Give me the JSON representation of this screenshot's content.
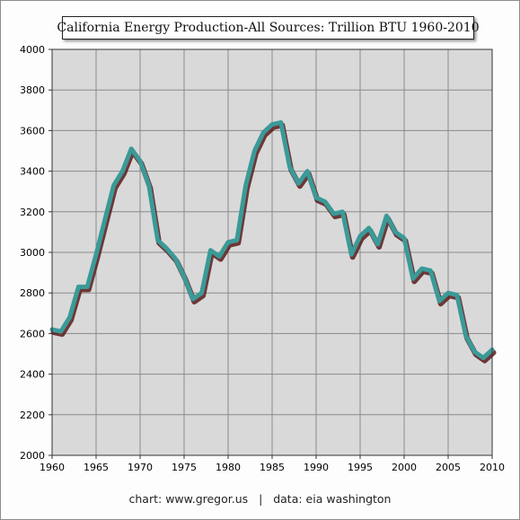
{
  "chart_data": {
    "type": "line",
    "title": "California Energy Production-All Sources: Trillion BTU 1960-2010",
    "xlabel": "",
    "ylabel": "",
    "xlim": [
      1960,
      2010
    ],
    "ylim": [
      2000,
      4000
    ],
    "x_ticks": [
      1960,
      1965,
      1970,
      1975,
      1980,
      1985,
      1990,
      1995,
      2000,
      2005,
      2010
    ],
    "y_ticks": [
      2000,
      2200,
      2400,
      2600,
      2800,
      3000,
      3200,
      3400,
      3600,
      3800,
      4000
    ],
    "grid": true,
    "legend": "none",
    "line_color": "#3a9a98",
    "shadow_color": "#5a1a1a",
    "plot_background": "#d9d9d9",
    "x": [
      1960,
      1961,
      1962,
      1963,
      1964,
      1965,
      1966,
      1967,
      1968,
      1969,
      1970,
      1971,
      1972,
      1973,
      1974,
      1975,
      1976,
      1977,
      1978,
      1979,
      1980,
      1981,
      1982,
      1983,
      1984,
      1985,
      1986,
      1987,
      1988,
      1989,
      1990,
      1991,
      1992,
      1993,
      1994,
      1995,
      1996,
      1997,
      1998,
      1999,
      2000,
      2001,
      2002,
      2003,
      2004,
      2005,
      2006,
      2007,
      2008,
      2009,
      2010
    ],
    "series": [
      {
        "values": [
          2620,
          2610,
          2680,
          2830,
          2830,
          2990,
          3160,
          3330,
          3400,
          3510,
          3450,
          3330,
          3060,
          3020,
          2970,
          2880,
          2770,
          2800,
          3010,
          2980,
          3050,
          3060,
          3330,
          3500,
          3590,
          3630,
          3640,
          3420,
          3340,
          3400,
          3270,
          3250,
          3190,
          3200,
          2990,
          3080,
          3120,
          3040,
          3180,
          3100,
          3070,
          2870,
          2920,
          2910,
          2760,
          2800,
          2790,
          2590,
          2510,
          2480,
          2520
        ]
      }
    ]
  },
  "footer": {
    "text": "chart: www.gregor.us   |   data: eia washington"
  }
}
